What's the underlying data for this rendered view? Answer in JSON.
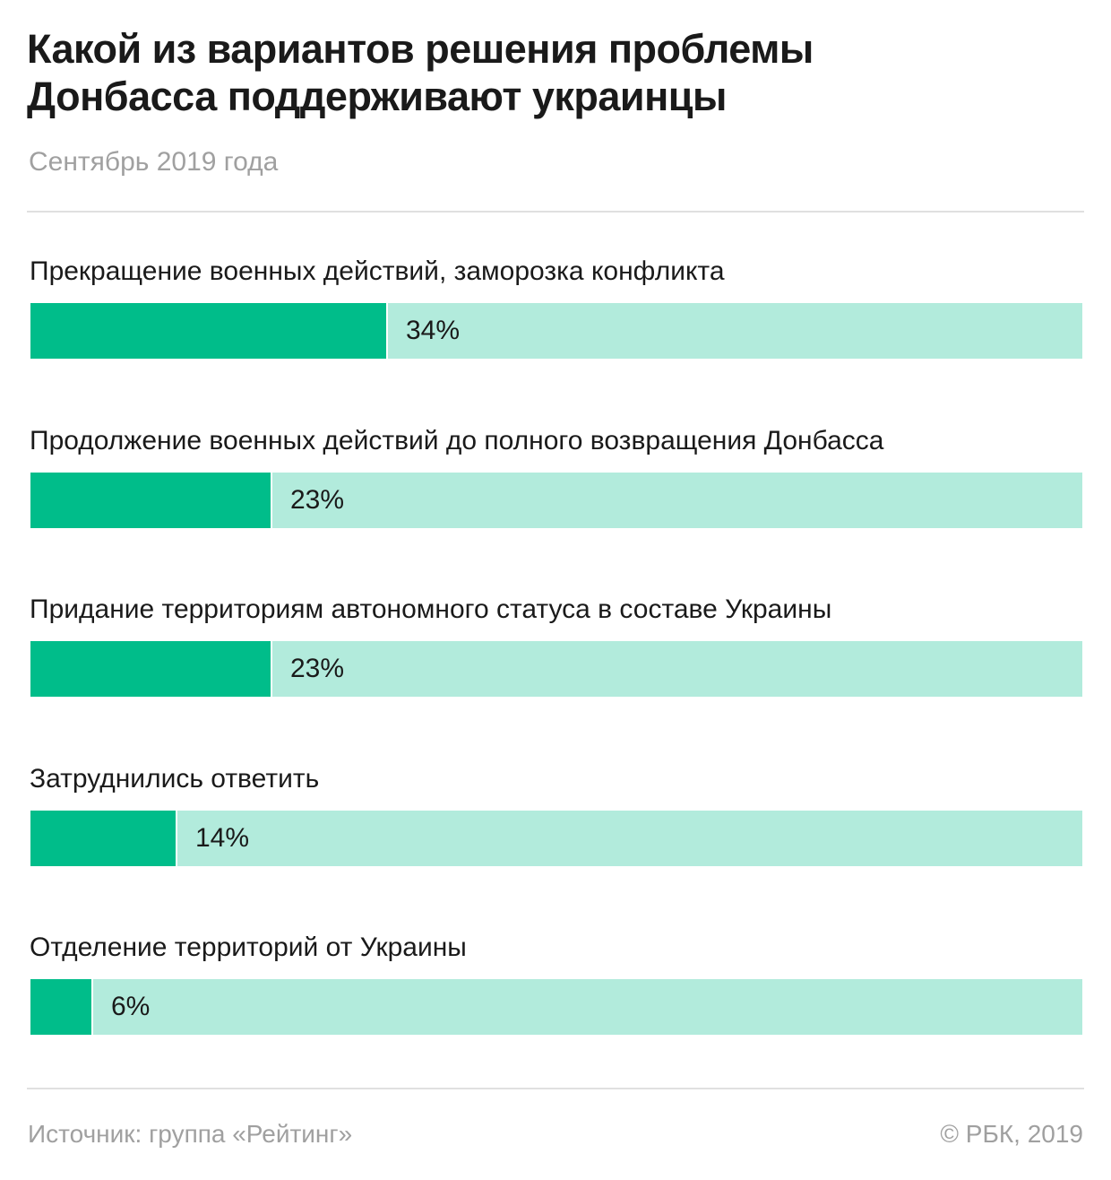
{
  "header": {
    "title_line1": "Какой из вариантов решения проблемы",
    "title_line2": "Донбасса поддерживают украинцы",
    "subtitle": "Сентябрь 2019 года"
  },
  "colors": {
    "fill": "#00bd8a",
    "track": "#b2ebdc"
  },
  "chart_data": {
    "type": "bar",
    "orientation": "horizontal",
    "title": "Какой из вариантов решения проблемы Донбасса поддерживают украинцы",
    "subtitle": "Сентябрь 2019 года",
    "categories": [
      "Прекращение военных действий, заморозка конфликта",
      "Продолжение военных действий до полного возвращения Донбасса",
      "Придание территориям автономного статуса в составе Украины",
      "Затруднились ответить",
      "Отделение территорий от Украины"
    ],
    "values": [
      34,
      23,
      23,
      14,
      6
    ],
    "value_labels": [
      "34%",
      "23%",
      "23%",
      "14%",
      "6%"
    ],
    "unit": "%",
    "xlim": [
      0,
      100
    ],
    "xlabel": "",
    "ylabel": ""
  },
  "footer": {
    "source": "Источник: группа «Рейтинг»",
    "copyright": "© РБК, 2019"
  }
}
